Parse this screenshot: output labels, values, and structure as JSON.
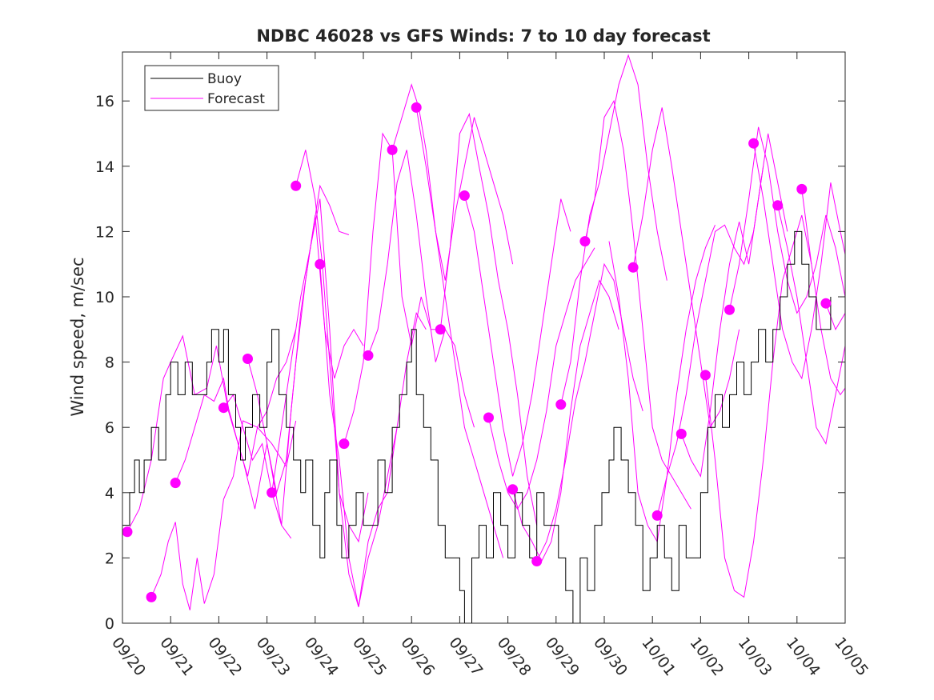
{
  "chart_data": {
    "type": "line",
    "title": "NDBC 46028 vs GFS Winds: 7 to 10 day forecast",
    "xlabel": "",
    "ylabel": "Wind speed, m/sec",
    "xlim": [
      0,
      15
    ],
    "ylim": [
      0,
      17.5
    ],
    "x_tick_values": [
      0,
      1,
      2,
      3,
      4,
      5,
      6,
      7,
      8,
      9,
      10,
      11,
      12,
      13,
      14,
      15
    ],
    "x_tick_labels": [
      "09/20",
      "09/21",
      "09/22",
      "09/23",
      "09/24",
      "09/25",
      "09/26",
      "09/27",
      "09/28",
      "09/29",
      "09/30",
      "10/01",
      "10/02",
      "10/03",
      "10/04",
      "10/05"
    ],
    "y_ticks": [
      0,
      2,
      4,
      6,
      8,
      10,
      12,
      14,
      16
    ],
    "grid": false,
    "legend": {
      "position": "top-left",
      "entries": [
        "Buoy",
        "Forecast"
      ]
    },
    "colors": {
      "buoy": "#000000",
      "forecast": "#ff00ff",
      "axis": "#262626"
    },
    "buoy": {
      "name": "Buoy",
      "x": [
        0,
        0.15,
        0.25,
        0.35,
        0.45,
        0.6,
        0.75,
        0.9,
        1.0,
        1.15,
        1.3,
        1.45,
        1.6,
        1.75,
        1.85,
        2.0,
        2.1,
        2.2,
        2.35,
        2.45,
        2.55,
        2.7,
        2.85,
        3.0,
        3.1,
        3.25,
        3.4,
        3.55,
        3.7,
        3.8,
        3.95,
        4.1,
        4.2,
        4.3,
        4.45,
        4.55,
        4.7,
        4.85,
        5.0,
        5.15,
        5.3,
        5.45,
        5.6,
        5.75,
        5.9,
        6.0,
        6.1,
        6.25,
        6.4,
        6.55,
        6.7,
        6.85,
        7.0,
        7.1,
        7.25,
        7.4,
        7.55,
        7.7,
        7.85,
        8.0,
        8.15,
        8.3,
        8.45,
        8.6,
        8.75,
        8.9,
        9.05,
        9.2,
        9.35,
        9.5,
        9.65,
        9.8,
        9.95,
        10.1,
        10.2,
        10.35,
        10.5,
        10.65,
        10.8,
        10.95,
        11.1,
        11.25,
        11.4,
        11.55,
        11.7,
        11.85,
        12.0,
        12.15,
        12.3,
        12.45,
        12.6,
        12.75,
        12.9,
        13.05,
        13.2,
        13.35,
        13.5,
        13.65,
        13.8,
        13.95,
        14.1,
        14.25,
        14.4,
        14.55,
        14.7
      ],
      "values": [
        3,
        4,
        5,
        4,
        5,
        6,
        5,
        7,
        8,
        7,
        8,
        7,
        7,
        8,
        9,
        8,
        9,
        7,
        6,
        5,
        6,
        7,
        6,
        8,
        9,
        7,
        6,
        5,
        4,
        5,
        3,
        2,
        4,
        5,
        3,
        2,
        3,
        4,
        3,
        3,
        5,
        4,
        6,
        7,
        8,
        9,
        7,
        6,
        5,
        3,
        2,
        2,
        1,
        0,
        2,
        3,
        2,
        4,
        3,
        2,
        4,
        3,
        2,
        4,
        3,
        3,
        2,
        1,
        0,
        2,
        1,
        3,
        4,
        5,
        6,
        5,
        4,
        3,
        1,
        2,
        3,
        2,
        1,
        3,
        2,
        2,
        4,
        6,
        7,
        6,
        7,
        8,
        7,
        8,
        9,
        8,
        9,
        10,
        11,
        12,
        11,
        10,
        9,
        9,
        10
      ]
    },
    "forecast_runs": [
      {
        "name": "Forecast",
        "x": [
          0.1,
          0.35,
          0.6,
          0.85,
          1.0,
          1.25,
          1.5,
          1.75,
          1.95,
          2.2,
          2.5,
          2.75,
          3.0,
          3.3,
          3.5
        ],
        "values": [
          2.8,
          3.5,
          5.0,
          7.5,
          8.0,
          8.8,
          7.0,
          7.2,
          8.5,
          6.5,
          5.0,
          3.5,
          5.5,
          3.0,
          2.6
        ]
      },
      {
        "name": "Forecast",
        "x": [
          0.6,
          0.8,
          0.95,
          1.1,
          1.25,
          1.4,
          1.55,
          1.7,
          1.9,
          2.1,
          2.3,
          2.5,
          2.8,
          3.1,
          3.4,
          3.6
        ],
        "values": [
          0.8,
          1.5,
          2.5,
          3.1,
          1.2,
          0.4,
          2.0,
          0.6,
          1.5,
          3.8,
          4.5,
          6.2,
          6.0,
          5.5,
          4.8,
          6.2
        ]
      },
      {
        "name": "Forecast",
        "x": [
          1.1,
          1.3,
          1.5,
          1.7,
          1.9,
          2.1,
          2.2,
          2.4,
          2.6,
          2.8,
          3.0,
          3.2,
          3.4,
          3.6
        ],
        "values": [
          4.3,
          5.0,
          6.0,
          7.0,
          6.8,
          7.5,
          6.6,
          5.5,
          4.5,
          6.0,
          6.5,
          7.5,
          8.0,
          9.0
        ]
      },
      {
        "name": "Forecast",
        "x": [
          2.1,
          2.3,
          2.5,
          2.7,
          2.9,
          3.1,
          3.3,
          3.5,
          3.7,
          3.9,
          4.1,
          4.3,
          4.5,
          4.7
        ],
        "values": [
          6.6,
          7.0,
          6.0,
          5.0,
          5.5,
          4.0,
          6.0,
          8.0,
          10.0,
          11.5,
          13.4,
          12.8,
          12.0,
          11.9
        ]
      },
      {
        "name": "Forecast",
        "x": [
          2.6,
          2.8,
          3.0,
          3.2,
          3.4,
          3.6,
          3.8,
          4.0,
          4.2,
          4.4,
          4.6,
          4.8,
          5.0
        ],
        "values": [
          8.1,
          7.0,
          5.5,
          4.0,
          5.0,
          8.0,
          10.5,
          12.5,
          9.0,
          7.5,
          8.5,
          9.0,
          8.5
        ]
      },
      {
        "name": "Forecast",
        "x": [
          3.1,
          3.3,
          3.5,
          3.7,
          3.9,
          4.1,
          4.3,
          4.5,
          4.7,
          4.9,
          5.1
        ],
        "values": [
          4.0,
          3.0,
          6.5,
          9.5,
          11.5,
          13.0,
          9.0,
          4.0,
          3.0,
          2.5,
          4.0
        ]
      },
      {
        "name": "Forecast",
        "x": [
          3.6,
          3.8,
          4.0,
          4.15,
          4.3,
          4.5,
          4.7,
          4.9,
          5.1,
          5.3,
          5.5,
          5.7
        ],
        "values": [
          13.4,
          14.5,
          13.0,
          11.0,
          8.0,
          4.0,
          1.5,
          0.5,
          2.0,
          3.0,
          4.5,
          6.0
        ]
      },
      {
        "name": "Forecast",
        "x": [
          4.1,
          4.3,
          4.5,
          4.7,
          4.9,
          5.1,
          5.3,
          5.5,
          5.7,
          5.9,
          6.1,
          6.3
        ],
        "values": [
          11.0,
          7.0,
          5.0,
          2.0,
          0.5,
          2.5,
          3.5,
          4.0,
          6.0,
          8.0,
          9.5,
          9.0
        ]
      },
      {
        "name": "Forecast",
        "x": [
          4.6,
          4.8,
          5.0,
          5.2,
          5.4,
          5.6,
          5.8,
          6.0,
          6.2,
          6.4,
          6.6
        ],
        "values": [
          5.5,
          6.5,
          8.0,
          12.0,
          15.0,
          14.5,
          10.0,
          8.5,
          10.0,
          9.0,
          9.0
        ]
      },
      {
        "name": "Forecast",
        "x": [
          5.1,
          5.3,
          5.5,
          5.7,
          5.9,
          6.1,
          6.3,
          6.5,
          6.7,
          6.9,
          7.1,
          7.3
        ],
        "values": [
          8.2,
          9.0,
          11.0,
          13.5,
          14.5,
          12.5,
          10.0,
          8.0,
          9.0,
          8.5,
          7.0,
          6.0
        ]
      },
      {
        "name": "Forecast",
        "x": [
          5.6,
          5.8,
          6.0,
          6.15,
          6.3,
          6.5,
          6.7,
          6.9,
          7.1,
          7.3,
          7.5,
          7.7,
          7.9
        ],
        "values": [
          14.5,
          15.5,
          16.5,
          15.8,
          14.5,
          12.0,
          10.0,
          8.0,
          6.0,
          5.0,
          4.0,
          3.0,
          2.0
        ]
      },
      {
        "name": "Forecast",
        "x": [
          6.1,
          6.3,
          6.5,
          6.7,
          6.9,
          7.1,
          7.3,
          7.5,
          7.7,
          7.9,
          8.1
        ],
        "values": [
          15.8,
          14.0,
          12.0,
          10.5,
          12.5,
          14.0,
          15.5,
          14.5,
          13.5,
          12.5,
          11.0
        ]
      },
      {
        "name": "Forecast",
        "x": [
          6.6,
          6.8,
          7.0,
          7.2,
          7.4,
          7.6,
          7.8,
          8.0,
          8.2,
          8.4,
          8.6
        ],
        "values": [
          9.0,
          11.5,
          15.0,
          15.6,
          14.0,
          12.5,
          10.5,
          9.0,
          7.0,
          4.5,
          3.0
        ]
      },
      {
        "name": "Forecast",
        "x": [
          7.1,
          7.3,
          7.5,
          7.7,
          7.9,
          8.1,
          8.3,
          8.5,
          8.7,
          8.9,
          9.1,
          9.3
        ],
        "values": [
          13.1,
          12.0,
          10.0,
          8.0,
          6.0,
          4.5,
          5.5,
          7.0,
          9.0,
          11.0,
          13.0,
          12.0
        ]
      },
      {
        "name": "Forecast",
        "x": [
          7.6,
          7.8,
          8.0,
          8.2,
          8.4,
          8.6,
          8.8,
          9.0,
          9.2,
          9.4,
          9.6,
          9.8
        ],
        "values": [
          6.3,
          5.0,
          4.0,
          3.5,
          4.0,
          5.0,
          6.5,
          8.5,
          9.5,
          10.5,
          11.0,
          11.5
        ]
      },
      {
        "name": "Forecast",
        "x": [
          8.1,
          8.3,
          8.5,
          8.7,
          8.9,
          9.1,
          9.3,
          9.5,
          9.7,
          9.9,
          10.1,
          10.3
        ],
        "values": [
          4.1,
          3.0,
          2.5,
          1.9,
          2.5,
          4.0,
          6.5,
          8.5,
          9.5,
          10.5,
          10.0,
          9.0
        ]
      },
      {
        "name": "Forecast",
        "x": [
          8.6,
          8.8,
          9.0,
          9.2,
          9.4,
          9.6,
          9.8,
          10.0,
          10.2,
          10.4,
          10.6,
          10.8
        ],
        "values": [
          1.9,
          2.5,
          3.5,
          5.0,
          6.8,
          8.0,
          9.5,
          11.0,
          10.5,
          9.0,
          7.5,
          6.5
        ]
      },
      {
        "name": "Forecast",
        "x": [
          9.1,
          9.3,
          9.5,
          9.7,
          9.9,
          10.1,
          10.3,
          10.5,
          10.7,
          10.9,
          11.1,
          11.3
        ],
        "values": [
          6.7,
          8.0,
          10.5,
          12.5,
          13.5,
          15.0,
          16.5,
          17.4,
          16.5,
          14.0,
          12.0,
          10.5
        ]
      },
      {
        "name": "Forecast",
        "x": [
          9.6,
          9.8,
          10.0,
          10.2,
          10.4,
          10.6,
          10.8,
          11.0,
          11.2,
          11.4,
          11.6,
          11.8
        ],
        "values": [
          11.7,
          13.0,
          15.5,
          16.0,
          14.5,
          12.0,
          9.0,
          6.0,
          5.0,
          4.5,
          4.0,
          3.5
        ]
      },
      {
        "name": "Forecast",
        "x": [
          10.1,
          10.3,
          10.5,
          10.7,
          10.9,
          11.1,
          11.3,
          11.5,
          11.7,
          11.9,
          12.1,
          12.3
        ],
        "values": [
          11.7,
          10.0,
          7.5,
          4.0,
          3.0,
          2.5,
          4.5,
          7.0,
          9.0,
          10.5,
          11.5,
          12.2
        ]
      },
      {
        "name": "Forecast",
        "x": [
          10.6,
          10.8,
          11.0,
          11.2,
          11.4,
          11.6,
          11.8,
          12.0,
          12.2,
          12.4,
          12.6,
          12.8
        ],
        "values": [
          10.9,
          12.5,
          14.5,
          15.8,
          14.0,
          12.0,
          10.0,
          8.0,
          6.0,
          6.5,
          7.5,
          9.0
        ]
      },
      {
        "name": "Forecast",
        "x": [
          11.1,
          11.3,
          11.5,
          11.7,
          11.9,
          12.1,
          12.3,
          12.5,
          12.7,
          12.9,
          13.1,
          13.3
        ],
        "values": [
          3.3,
          4.5,
          5.5,
          7.0,
          9.0,
          10.5,
          12.0,
          12.2,
          11.5,
          11.0,
          12.0,
          14.0
        ]
      },
      {
        "name": "Forecast",
        "x": [
          11.6,
          11.8,
          12.0,
          12.2,
          12.4,
          12.6,
          12.8,
          13.0,
          13.2,
          13.4,
          13.6,
          13.8
        ],
        "values": [
          5.8,
          5.0,
          4.5,
          6.5,
          9.0,
          11.0,
          12.3,
          11.0,
          13.0,
          15.0,
          13.5,
          12.0
        ]
      },
      {
        "name": "Forecast",
        "x": [
          12.1,
          12.3,
          12.5,
          12.7,
          12.9,
          13.1,
          13.3,
          13.5,
          13.7,
          13.9,
          14.1,
          14.3
        ],
        "values": [
          7.6,
          5.0,
          2.0,
          1.0,
          0.8,
          2.5,
          5.0,
          8.0,
          10.5,
          11.5,
          12.5,
          11.0
        ]
      },
      {
        "name": "Forecast",
        "x": [
          12.6,
          12.8,
          13.0,
          13.2,
          13.4,
          13.6,
          13.8,
          14.0,
          14.2,
          14.4,
          14.6,
          14.8,
          15.0
        ],
        "values": [
          9.6,
          11.0,
          13.0,
          15.2,
          14.0,
          12.0,
          10.5,
          9.5,
          10.0,
          11.0,
          12.5,
          11.5,
          10.0
        ]
      },
      {
        "name": "Forecast",
        "x": [
          13.1,
          13.3,
          13.5,
          13.7,
          13.9,
          14.1,
          14.3,
          14.5,
          14.7,
          14.9,
          15.0
        ],
        "values": [
          14.7,
          13.0,
          11.0,
          9.0,
          8.0,
          7.5,
          9.0,
          11.0,
          13.5,
          12.0,
          11.3
        ]
      },
      {
        "name": "Forecast",
        "x": [
          13.6,
          13.8,
          14.0,
          14.2,
          14.4,
          14.6,
          14.8,
          15.0
        ],
        "values": [
          12.8,
          11.5,
          10.0,
          8.0,
          6.0,
          5.5,
          7.0,
          8.5
        ]
      },
      {
        "name": "Forecast",
        "x": [
          14.1,
          14.3,
          14.5,
          14.7,
          14.9,
          15.0
        ],
        "values": [
          13.3,
          11.0,
          9.0,
          7.5,
          7.0,
          7.2
        ]
      },
      {
        "name": "Forecast",
        "x": [
          14.6,
          14.8,
          15.0
        ],
        "values": [
          9.8,
          9.0,
          9.5
        ]
      }
    ],
    "forecast_markers": {
      "x": [
        0.1,
        0.6,
        1.1,
        2.1,
        2.6,
        3.1,
        3.6,
        4.1,
        4.6,
        5.1,
        5.6,
        6.1,
        6.6,
        7.1,
        7.6,
        8.1,
        8.6,
        9.1,
        9.6,
        10.6,
        11.1,
        11.6,
        12.1,
        12.6,
        13.1,
        13.6,
        14.1,
        14.6
      ],
      "values": [
        2.8,
        0.8,
        4.3,
        6.6,
        8.1,
        4.0,
        13.4,
        11.0,
        5.5,
        8.2,
        14.5,
        15.8,
        9.0,
        13.1,
        6.3,
        4.1,
        1.9,
        6.7,
        11.7,
        10.9,
        3.3,
        5.8,
        7.6,
        9.6,
        14.7,
        12.8,
        13.3,
        9.8
      ]
    }
  }
}
